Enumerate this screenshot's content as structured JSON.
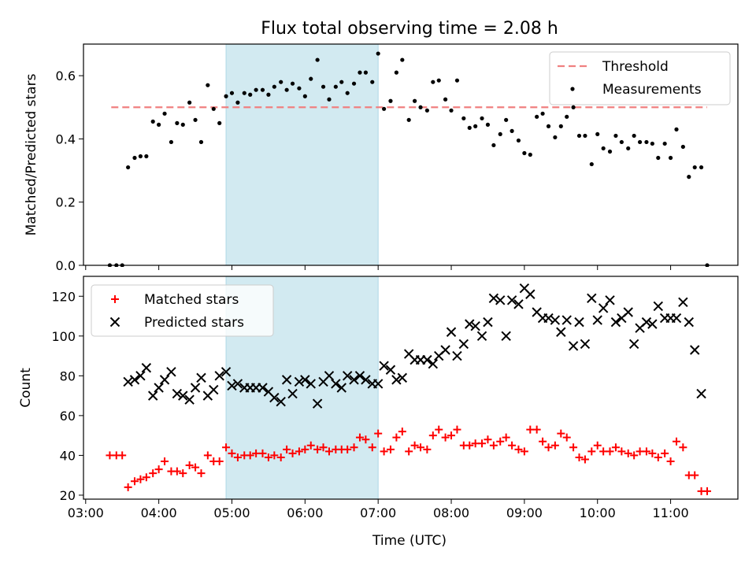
{
  "chart_data": {
    "type": "scatter",
    "title": "Flux total observing time = 2.08 h",
    "xlabel": "Time (UTC)",
    "x_unit": "hours UTC",
    "xlim": [
      2.97,
      11.92
    ],
    "xticks": [
      3,
      4,
      5,
      6,
      7,
      8,
      9,
      10,
      11
    ],
    "xtick_labels": [
      "03:00",
      "04:00",
      "05:00",
      "06:00",
      "07:00",
      "08:00",
      "09:00",
      "10:00",
      "11:00"
    ],
    "highlight_span": [
      4.92,
      7.0
    ],
    "colors": {
      "threshold": "#f08080",
      "measurements": "#000000",
      "matched": "#ff0000",
      "predicted": "#000000",
      "span": "#add8e6"
    },
    "panels": [
      {
        "ylabel": "Matched/Predicted stars",
        "ylim": [
          0,
          0.7
        ],
        "yticks": [
          0.0,
          0.2,
          0.4,
          0.6
        ],
        "ytick_labels": [
          "0.0",
          "0.2",
          "0.4",
          "0.6"
        ],
        "legend_position": "top-right",
        "threshold": {
          "name": "Threshold",
          "y": 0.5,
          "x_range": [
            3.35,
            11.5
          ]
        },
        "series": [
          {
            "name": "Measurements",
            "marker": "dot",
            "x": [
              3.33,
              3.42,
              3.5,
              3.58,
              3.67,
              3.75,
              3.83,
              3.92,
              4.0,
              4.08,
              4.17,
              4.25,
              4.33,
              4.42,
              4.5,
              4.58,
              4.67,
              4.75,
              4.83,
              4.92,
              5.0,
              5.08,
              5.17,
              5.25,
              5.33,
              5.42,
              5.5,
              5.58,
              5.67,
              5.75,
              5.83,
              5.92,
              6.0,
              6.08,
              6.17,
              6.25,
              6.33,
              6.42,
              6.5,
              6.58,
              6.67,
              6.75,
              6.83,
              6.92,
              7.0,
              7.08,
              7.17,
              7.25,
              7.33,
              7.42,
              7.5,
              7.58,
              7.67,
              7.75,
              7.83,
              7.92,
              8.0,
              8.08,
              8.17,
              8.25,
              8.33,
              8.42,
              8.5,
              8.58,
              8.67,
              8.75,
              8.83,
              8.92,
              9.0,
              9.08,
              9.17,
              9.25,
              9.33,
              9.42,
              9.5,
              9.58,
              9.67,
              9.75,
              9.83,
              9.92,
              10.0,
              10.08,
              10.17,
              10.25,
              10.33,
              10.42,
              10.5,
              10.58,
              10.67,
              10.75,
              10.83,
              10.92,
              11.0,
              11.08,
              11.17,
              11.25,
              11.33,
              11.42,
              11.5
            ],
            "y": [
              0.0,
              0.0,
              0.0,
              0.31,
              0.34,
              0.345,
              0.345,
              0.455,
              0.445,
              0.48,
              0.39,
              0.45,
              0.445,
              0.515,
              0.46,
              0.39,
              0.57,
              0.495,
              0.45,
              0.535,
              0.545,
              0.515,
              0.545,
              0.54,
              0.555,
              0.555,
              0.54,
              0.565,
              0.58,
              0.555,
              0.575,
              0.56,
              0.535,
              0.59,
              0.65,
              0.565,
              0.525,
              0.565,
              0.58,
              0.545,
              0.575,
              0.61,
              0.61,
              0.58,
              0.67,
              0.495,
              0.52,
              0.61,
              0.65,
              0.46,
              0.52,
              0.5,
              0.49,
              0.58,
              0.585,
              0.525,
              0.49,
              0.585,
              0.465,
              0.435,
              0.44,
              0.465,
              0.445,
              0.38,
              0.415,
              0.46,
              0.425,
              0.395,
              0.355,
              0.35,
              0.47,
              0.48,
              0.44,
              0.405,
              0.44,
              0.47,
              0.5,
              0.41,
              0.41,
              0.32,
              0.415,
              0.37,
              0.36,
              0.41,
              0.39,
              0.37,
              0.41,
              0.39,
              0.39,
              0.385,
              0.34,
              0.385,
              0.34,
              0.43,
              0.375,
              0.28,
              0.31,
              0.31,
              0.0
            ]
          }
        ]
      },
      {
        "ylabel": "Count",
        "ylim": [
          18,
          130
        ],
        "yticks": [
          20,
          40,
          60,
          80,
          100,
          120
        ],
        "ytick_labels": [
          "20",
          "40",
          "60",
          "80",
          "100",
          "120"
        ],
        "legend_position": "top-left",
        "series": [
          {
            "name": "Matched stars",
            "marker": "plus",
            "x": [
              3.33,
              3.42,
              3.5,
              3.58,
              3.67,
              3.75,
              3.83,
              3.92,
              4.0,
              4.08,
              4.17,
              4.25,
              4.33,
              4.42,
              4.5,
              4.58,
              4.67,
              4.75,
              4.83,
              4.92,
              5.0,
              5.08,
              5.17,
              5.25,
              5.33,
              5.42,
              5.5,
              5.58,
              5.67,
              5.75,
              5.83,
              5.92,
              6.0,
              6.08,
              6.17,
              6.25,
              6.33,
              6.42,
              6.5,
              6.58,
              6.67,
              6.75,
              6.83,
              6.92,
              7.0,
              7.08,
              7.17,
              7.25,
              7.33,
              7.42,
              7.5,
              7.58,
              7.67,
              7.75,
              7.83,
              7.92,
              8.0,
              8.08,
              8.17,
              8.25,
              8.33,
              8.42,
              8.5,
              8.58,
              8.67,
              8.75,
              8.83,
              8.92,
              9.0,
              9.08,
              9.17,
              9.25,
              9.33,
              9.42,
              9.5,
              9.58,
              9.67,
              9.75,
              9.83,
              9.92,
              10.0,
              10.08,
              10.17,
              10.25,
              10.33,
              10.42,
              10.5,
              10.58,
              10.67,
              10.75,
              10.83,
              10.92,
              11.0,
              11.08,
              11.17,
              11.25,
              11.33,
              11.42,
              11.5
            ],
            "y": [
              40,
              40,
              40,
              24,
              27,
              28,
              29,
              31,
              33,
              37,
              32,
              32,
              31,
              35,
              34,
              31,
              40,
              37,
              37,
              44,
              41,
              39,
              40,
              40,
              41,
              41,
              39,
              40,
              39,
              43,
              41,
              42,
              43,
              45,
              43,
              44,
              42,
              43,
              43,
              43,
              44,
              49,
              48,
              44,
              51,
              42,
              43,
              49,
              52,
              42,
              45,
              44,
              43,
              50,
              53,
              49,
              50,
              53,
              45,
              45,
              46,
              46,
              48,
              45,
              47,
              49,
              45,
              43,
              42,
              53,
              53,
              47,
              44,
              45,
              51,
              49,
              44,
              39,
              38,
              42,
              45,
              42,
              42,
              44,
              42,
              41,
              40,
              42,
              42,
              41,
              39,
              41,
              37,
              47,
              44,
              30,
              30,
              22,
              22
            ]
          },
          {
            "name": "Predicted stars",
            "marker": "x",
            "x": [
              3.58,
              3.67,
              3.75,
              3.83,
              3.92,
              4.0,
              4.08,
              4.17,
              4.25,
              4.33,
              4.42,
              4.5,
              4.58,
              4.67,
              4.75,
              4.83,
              4.92,
              5.0,
              5.08,
              5.17,
              5.25,
              5.33,
              5.42,
              5.5,
              5.58,
              5.67,
              5.75,
              5.83,
              5.92,
              6.0,
              6.08,
              6.17,
              6.25,
              6.33,
              6.42,
              6.5,
              6.58,
              6.67,
              6.75,
              6.83,
              6.92,
              7.0,
              7.08,
              7.17,
              7.25,
              7.33,
              7.42,
              7.5,
              7.58,
              7.67,
              7.75,
              7.83,
              7.92,
              8.0,
              8.08,
              8.17,
              8.25,
              8.33,
              8.42,
              8.5,
              8.58,
              8.67,
              8.75,
              8.83,
              8.92,
              9.0,
              9.08,
              9.17,
              9.25,
              9.33,
              9.42,
              9.5,
              9.58,
              9.67,
              9.75,
              9.83,
              9.92,
              10.0,
              10.08,
              10.17,
              10.25,
              10.33,
              10.42,
              10.5,
              10.58,
              10.67,
              10.75,
              10.83,
              10.92,
              11.0,
              11.08,
              11.17,
              11.25,
              11.33,
              11.42
            ],
            "y": [
              77,
              78,
              80,
              84,
              70,
              74,
              78,
              82,
              71,
              70,
              68,
              74,
              79,
              70,
              73,
              80,
              82,
              75,
              76,
              74,
              74,
              74,
              74,
              72,
              69,
              67,
              78,
              71,
              77,
              78,
              76,
              66,
              77,
              80,
              76,
              74,
              80,
              78,
              80,
              78,
              76,
              76,
              85,
              83,
              78,
              79,
              91,
              88,
              88,
              88,
              86,
              90,
              93,
              102,
              90,
              96,
              106,
              105,
              100,
              107,
              119,
              118,
              100,
              118,
              116,
              124,
              121,
              112,
              109,
              109,
              108,
              102,
              108,
              95,
              107,
              96,
              119,
              108,
              114,
              118,
              107,
              109,
              112,
              96,
              104,
              107,
              106,
              115,
              109,
              109,
              109,
              117,
              107,
              93,
              71
            ]
          }
        ]
      }
    ]
  }
}
